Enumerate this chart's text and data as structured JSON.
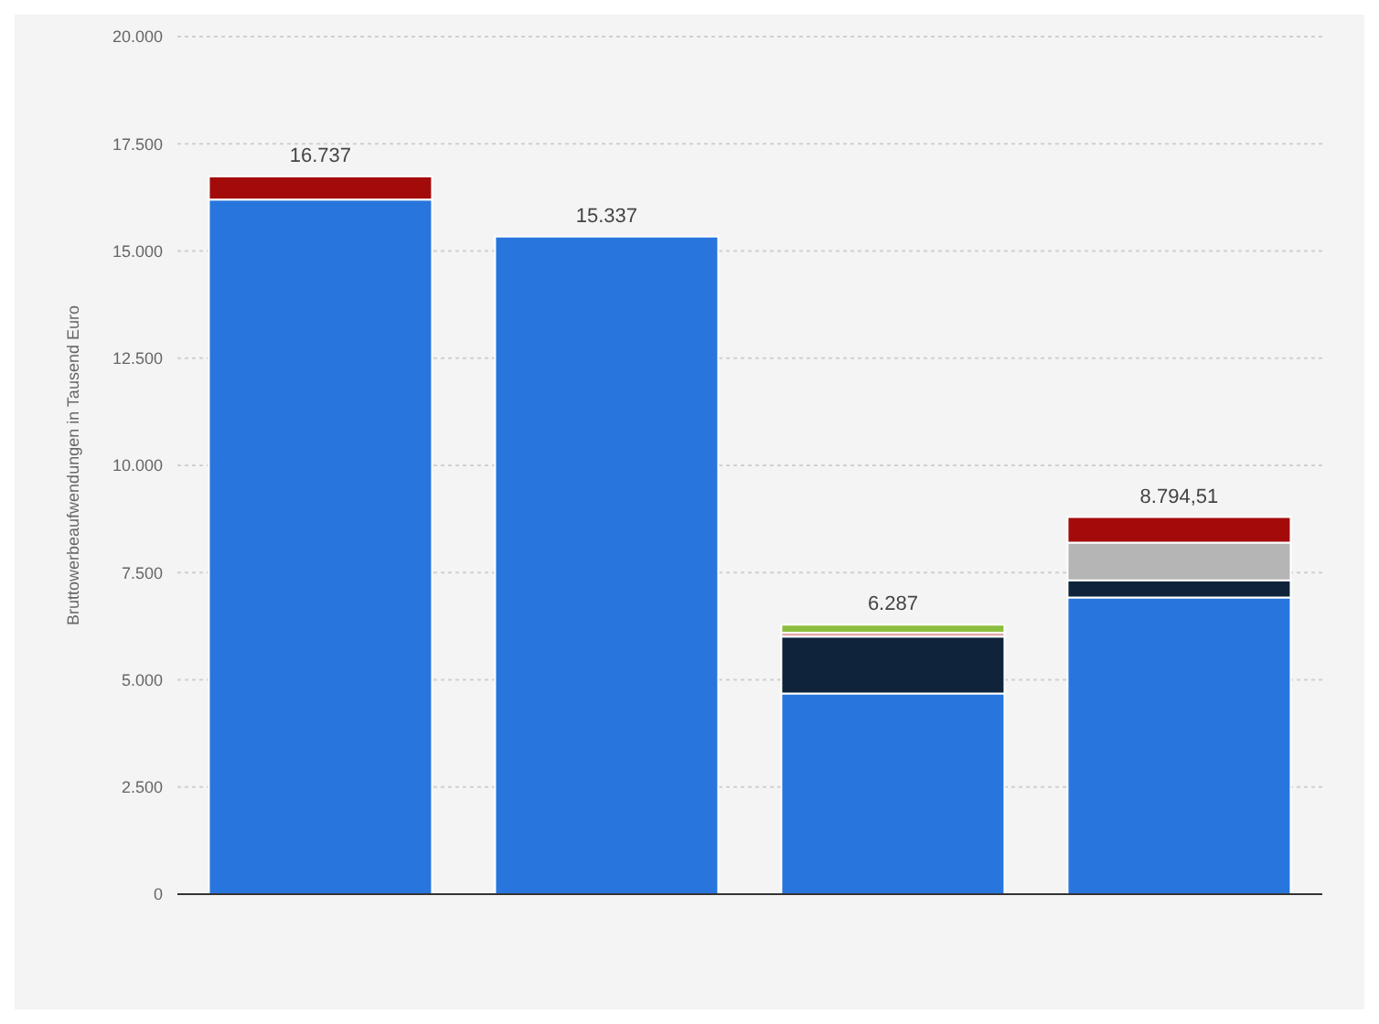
{
  "chart_data": {
    "type": "bar",
    "stacked": true,
    "ylabel": "Bruttowerbeaufwendungen in Tausend Euro",
    "categories": [
      null,
      null,
      null,
      null
    ],
    "series": [
      {
        "color": "#2876dd",
        "values": [
          16200,
          15337,
          4680,
          6920
        ]
      },
      {
        "color": "#0f243b",
        "values": [
          null,
          null,
          1330,
          400
        ]
      },
      {
        "color": "#b5b5b5",
        "values": [
          null,
          null,
          null,
          880
        ]
      },
      {
        "color": "#e3a4a4",
        "values": [
          null,
          null,
          90,
          null
        ]
      },
      {
        "color": "#8cbf3f",
        "values": [
          null,
          null,
          187,
          null
        ]
      },
      {
        "color": "#a30b0b",
        "values": [
          537,
          null,
          null,
          594.51
        ]
      }
    ],
    "totals": [
      "16.737",
      "15.337",
      "6.287",
      "8.794,51"
    ],
    "ylim": [
      0,
      20000
    ],
    "yticks": [
      {
        "value": 0,
        "label": "0"
      },
      {
        "value": 2500,
        "label": "2.500"
      },
      {
        "value": 5000,
        "label": "5.000"
      },
      {
        "value": 7500,
        "label": "7.500"
      },
      {
        "value": 10000,
        "label": "10.000"
      },
      {
        "value": 12500,
        "label": "12.500"
      },
      {
        "value": 15000,
        "label": "15.000"
      },
      {
        "value": 17500,
        "label": "17.500"
      },
      {
        "value": 20000,
        "label": "20.000"
      }
    ],
    "grid": "y",
    "legend": false,
    "tick_labels": "y"
  }
}
